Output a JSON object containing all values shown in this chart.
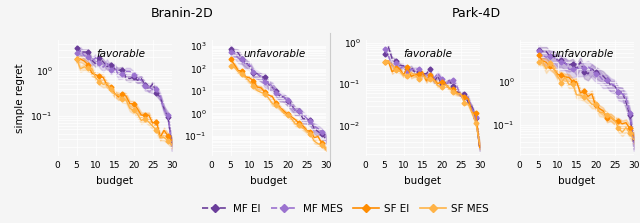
{
  "title_left": "Branin-2D",
  "title_right": "Park-4D",
  "ylabel": "simple regret",
  "xlabel": "budget",
  "subplot_labels": [
    "favorable",
    "unfavorable",
    "favorable",
    "unfavorable"
  ],
  "colors": {
    "MF_EI": "#6a3d9a",
    "MF_MES": "#9b72cf",
    "SF_EI": "#ff8c00",
    "SF_MES": "#ffb347"
  },
  "legend_labels": [
    "MF EI",
    "MF MES",
    "SF EI",
    "SF MES"
  ],
  "xlim": [
    0,
    30
  ],
  "xticks": [
    0,
    5,
    10,
    15,
    20,
    25,
    30
  ],
  "figure_background": "#f5f5f5"
}
